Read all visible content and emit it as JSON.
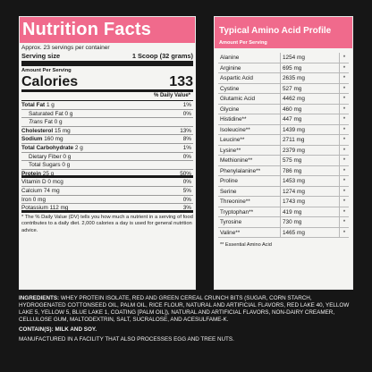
{
  "nutrition": {
    "title": "Nutrition Facts",
    "servings_per_container": "Approx. 23 servings per container",
    "serving_size_label": "Serving size",
    "serving_size_value": "1 Scoop (32 grams)",
    "amount_per_serving": "Amount Per Serving",
    "calories_label": "Calories",
    "calories_value": "133",
    "dv_header": "% Daily Value*",
    "rows": [
      {
        "label": "Total Fat",
        "amount": "1 g",
        "dv": "1%"
      },
      {
        "label": "Saturated Fat",
        "amount": "0 g",
        "dv": "0%"
      },
      {
        "label": "Trans",
        "label2": "Fat",
        "amount": "0 g",
        "dv": ""
      },
      {
        "label": "Cholesterol",
        "amount": "15 mg",
        "dv": "13%"
      },
      {
        "label": "Sodium",
        "amount": "160 mg",
        "dv": "8%"
      },
      {
        "label": "Total Carbohydrate",
        "amount": "2 g",
        "dv": "1%"
      },
      {
        "label": "Dietary Fiber",
        "amount": "0 g",
        "dv": "0%"
      },
      {
        "label": "Total Sugars",
        "amount": "0 g",
        "dv": ""
      },
      {
        "label": "Protein",
        "amount": "25 g",
        "dv": "50%"
      },
      {
        "label": "Vitamin D",
        "amount": "0 mcg",
        "dv": "0%"
      },
      {
        "label": "Calcium",
        "amount": "74 mg",
        "dv": "5%"
      },
      {
        "label": "Iron",
        "amount": "0 mg",
        "dv": "0%"
      },
      {
        "label": "Potassium",
        "amount": "112 mg",
        "dv": "3%"
      }
    ],
    "footnote": "* The % Daily Value (DV) tells you how much a nutrient in a serving of food contributes to a daily diet. 2,000 calories a day is used for general nutrition advice."
  },
  "amino": {
    "title": "Typical Amino Acid Profile",
    "subtitle": "Amount Per Serving",
    "rows": [
      {
        "name": "Alanine",
        "value": "1254 mg",
        "mark": "*"
      },
      {
        "name": "Arginine",
        "value": "695 mg",
        "mark": "*"
      },
      {
        "name": "Aspartic Acid",
        "value": "2635 mg",
        "mark": "*"
      },
      {
        "name": "Cystine",
        "value": "527 mg",
        "mark": "*"
      },
      {
        "name": "Glutamic Acid",
        "value": "4462 mg",
        "mark": "*"
      },
      {
        "name": "Glycine",
        "value": "460 mg",
        "mark": "*"
      },
      {
        "name": "Histidine**",
        "value": "447 mg",
        "mark": "*"
      },
      {
        "name": "Isoleucine**",
        "value": "1439 mg",
        "mark": "*"
      },
      {
        "name": "Leucine**",
        "value": "2711 mg",
        "mark": "*"
      },
      {
        "name": "Lysine**",
        "value": "2379 mg",
        "mark": "*"
      },
      {
        "name": "Methionine**",
        "value": "575 mg",
        "mark": "*"
      },
      {
        "name": "Phenylalanine**",
        "value": "786 mg",
        "mark": "*"
      },
      {
        "name": "Proline",
        "value": "1453 mg",
        "mark": "*"
      },
      {
        "name": "Serine",
        "value": "1274 mg",
        "mark": "*"
      },
      {
        "name": "Threonine**",
        "value": "1743 mg",
        "mark": "*"
      },
      {
        "name": "Tryptophan**",
        "value": "419 mg",
        "mark": "*"
      },
      {
        "name": "Tyrosine",
        "value": "730 mg",
        "mark": "*"
      },
      {
        "name": "Valine**",
        "value": "1465 mg",
        "mark": "*"
      }
    ],
    "note": "** Essential Amino Acid"
  },
  "ingredients": {
    "label": "INGREDIENTS:",
    "text": "WHEY PROTEIN ISOLATE, RED AND GREEN CEREAL CRUNCH BITS (SUGAR, CORN STARCH, HYDROGENATED COTTONSEED OIL, PALM OIL, RICE FLOUR, NATURAL AND ARTIFICIAL FLAVORS, RED LAKE 40, YELLOW LAKE 5, YELLOW 5, BLUE LAKE 1, COATING [PALM OIL]), NATURAL AND ARTIFICIAL FLAVORS, NON-DAIRY CREAMER, CELLULOSE GUM, MALTODEXTRIN, SALT, SUCRALOSE, AND ACESULFAME-K.",
    "contains_label": "CONTAIN(S): MILK AND SOY.",
    "facility_note": "MANUFACTURED IN A FACILITY THAT ALSO PROCESSES EGG AND TREE NUTS."
  },
  "colors": {
    "accent": "#f06a8c",
    "panel": "#f4f4f2",
    "background": "#161616"
  }
}
